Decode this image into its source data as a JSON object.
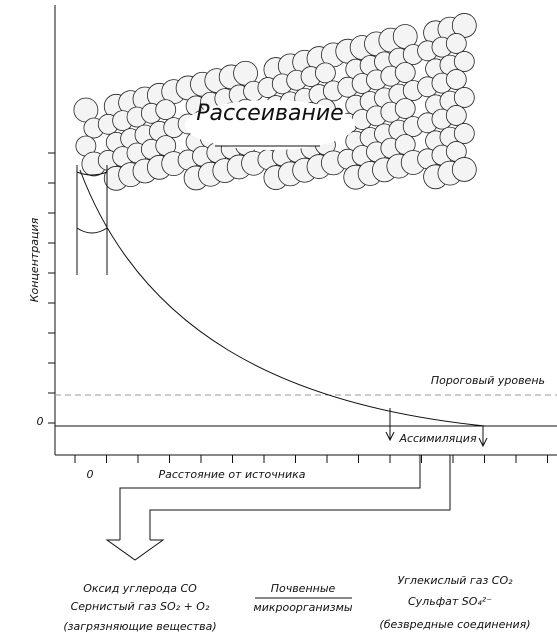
{
  "cloud_label": "Рассеивание",
  "y_axis": {
    "label": "Концентрация",
    "zero": "0"
  },
  "threshold_label": "Пороговый уровень",
  "assimilation_label": "Ассимиляция",
  "x_axis": {
    "zero": "0",
    "label": "Расстояние от источника"
  },
  "pollutants": [
    "Оксид углерода CO",
    "Сернистый газ SO₂ + O₂",
    "(загрязняющие вещества)"
  ],
  "agent": [
    "Почвенные",
    "микроорганизмы"
  ],
  "products": [
    "Углекислый газ CO₂",
    "Сульфат SO₄²⁻",
    "(безвредные соединения)"
  ]
}
